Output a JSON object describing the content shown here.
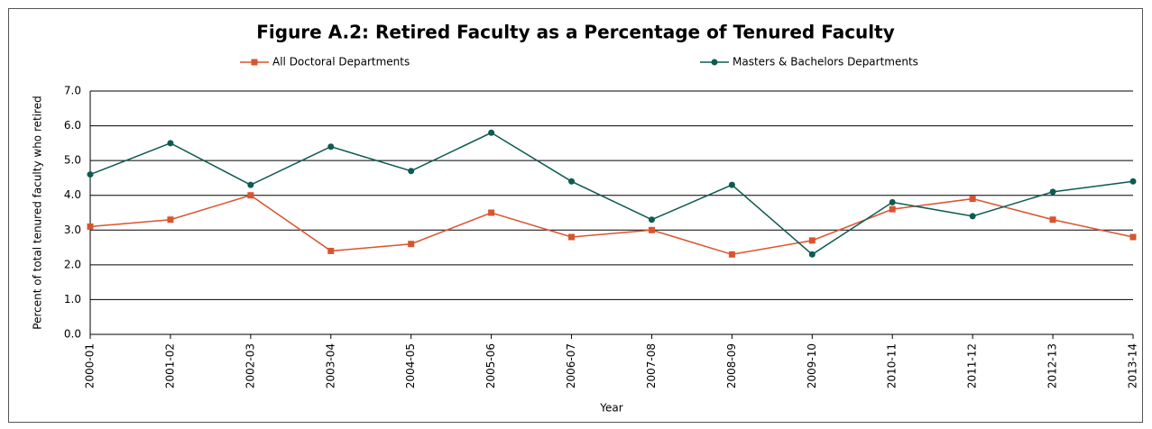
{
  "chart_data": {
    "type": "line",
    "title": "Figure A.2: Retired Faculty as a Percentage of Tenured Faculty",
    "x_label": "Year",
    "y_label": "Percent of total tenured faculty who retired",
    "categories": [
      "2000-01",
      "2001-02",
      "2002-03",
      "2003-04",
      "2004-05",
      "2005-06",
      "2006-07",
      "2007-08",
      "2008-09",
      "2009-10",
      "2010-11",
      "2011-12",
      "2012-13",
      "2013-14"
    ],
    "series": [
      {
        "name": "All Doctoral Departments",
        "color": "#d9542e",
        "marker": "square",
        "values": [
          3.1,
          3.3,
          4.0,
          2.4,
          2.6,
          3.5,
          2.8,
          3.0,
          2.3,
          2.7,
          3.6,
          3.9,
          3.3,
          2.8
        ]
      },
      {
        "name": "Masters & Bachelors Departments",
        "color": "#0d5b52",
        "marker": "circle",
        "values": [
          4.6,
          5.5,
          4.3,
          5.4,
          4.7,
          5.8,
          4.4,
          3.3,
          4.3,
          2.3,
          3.8,
          3.4,
          4.1,
          4.4
        ]
      }
    ],
    "ylim": [
      0,
      7
    ],
    "yticks": [
      {
        "value": 0,
        "label": "0.0"
      },
      {
        "value": 1,
        "label": "1.0"
      },
      {
        "value": 2,
        "label": "2.0"
      },
      {
        "value": 3,
        "label": "3.0"
      },
      {
        "value": 4,
        "label": "4.0"
      },
      {
        "value": 5,
        "label": "5.0"
      },
      {
        "value": 6,
        "label": "6.0"
      },
      {
        "value": 7,
        "label": "7.0"
      }
    ],
    "grid": true
  }
}
